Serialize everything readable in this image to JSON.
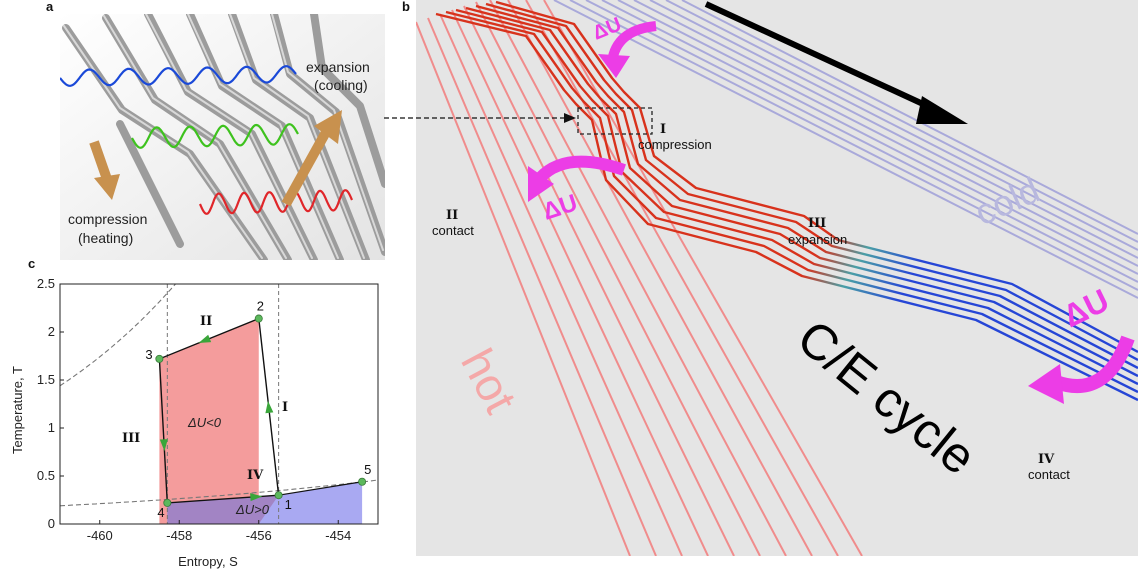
{
  "panel_a": {
    "letter": "a",
    "expansion_line1": "expansion",
    "expansion_line2": "(cooling)",
    "compression_line1": "compression",
    "compression_line2": "(heating)",
    "colors": {
      "wave_blue": "#1a49d8",
      "wave_green": "#3ec21e",
      "wave_red": "#e0262a",
      "arrow": "#c8914e",
      "waveguide": "#9c9c9c"
    }
  },
  "panel_b": {
    "letter": "b",
    "stage_I_numeral": "I",
    "stage_I_label": "compression",
    "stage_II_numeral": "II",
    "stage_II_label": "contact",
    "stage_III_numeral": "III",
    "stage_III_label": "expansion",
    "stage_IV_numeral": "IV",
    "stage_IV_label": "contact",
    "delta_u": "ΔU",
    "hot_label": "hot",
    "cold_label": "cold",
    "cycle_label": "C/E cycle",
    "colors": {
      "hot": "#f08c8c",
      "cold": "#a9a9da",
      "pipe_red": "#d8321c",
      "pipe_blue": "#2646d6",
      "delta_arrow": "#ec3de6",
      "background": "#e5e5e5"
    }
  },
  "panel_c": {
    "letter": "c",
    "chart_data": {
      "type": "line",
      "xlabel": "Entropy, S",
      "ylabel": "Temperature, T",
      "xlim": [
        -461,
        -453
      ],
      "ylim": [
        0,
        2.5
      ],
      "xticks": [
        -460,
        -458,
        -456,
        -454
      ],
      "yticks": [
        0,
        0.5,
        1,
        1.5,
        2,
        2.5
      ],
      "points": [
        {
          "label": "1",
          "x": -455.5,
          "y": 0.3
        },
        {
          "label": "2",
          "x": -456.0,
          "y": 2.14
        },
        {
          "label": "3",
          "x": -458.5,
          "y": 1.72
        },
        {
          "label": "4",
          "x": -458.3,
          "y": 0.22
        },
        {
          "label": "5",
          "x": -453.4,
          "y": 0.44
        }
      ],
      "cycle_order": [
        "1",
        "2",
        "3",
        "4",
        "1"
      ],
      "stage_labels": [
        "I",
        "II",
        "III",
        "IV"
      ],
      "region_labels": [
        "ΔU<0",
        "ΔU>0"
      ],
      "colors": {
        "upper_region": "#f49c9c",
        "lower_region": "#a9a9f2",
        "overlap_region": "#a284c4",
        "point": "#5cb85c",
        "arrow": "#3aa63a",
        "isotherm": "#777777"
      }
    }
  }
}
